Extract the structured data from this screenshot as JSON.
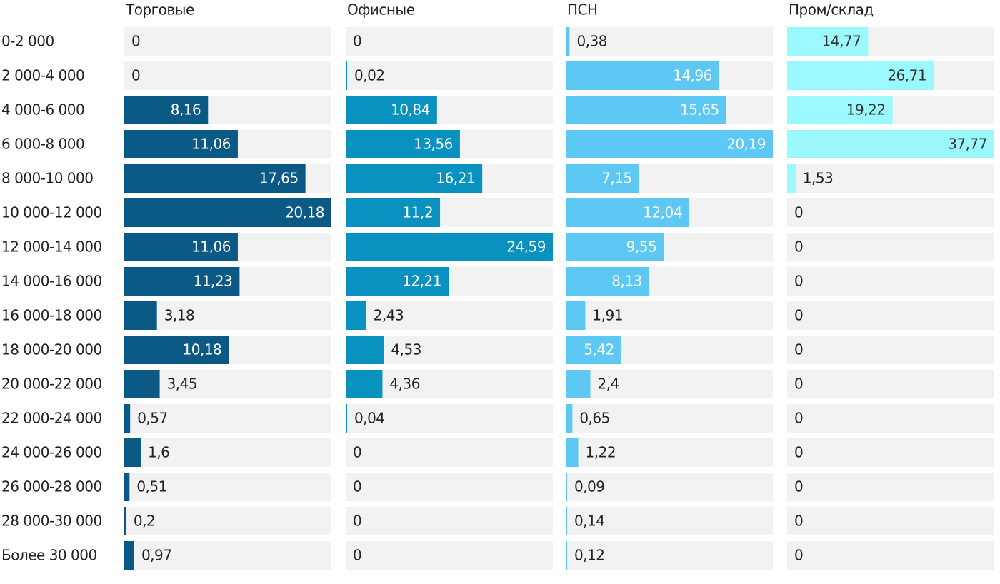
{
  "chart_data": {
    "type": "bar",
    "orientation": "horizontal",
    "categories": [
      "0-2 000",
      "2 000-4 000",
      "4 000-6 000",
      "6 000-8 000",
      "8 000-10 000",
      "10 000-12 000",
      "12 000-14 000",
      "14 000-16 000",
      "16 000-18 000",
      "18 000-20 000",
      "20 000-22 000",
      "22 000-24 000",
      "24 000-26 000",
      "26 000-28 000",
      "28 000-30 000",
      "Более 30 000"
    ],
    "series": [
      {
        "name": "Торговые",
        "color": "#0b5a86",
        "xlim": [
          0,
          20.18
        ],
        "values": [
          0,
          0,
          8.16,
          11.06,
          17.65,
          20.18,
          11.06,
          11.23,
          3.18,
          10.18,
          3.45,
          0.57,
          1.6,
          0.51,
          0.2,
          0.97
        ],
        "value_labels": [
          "0",
          "0",
          "8,16",
          "11,06",
          "17,65",
          "20,18",
          "11,06",
          "11,23",
          "3,18",
          "10,18",
          "3,45",
          "0,57",
          "1,6",
          "0,51",
          "0,2",
          "0,97"
        ]
      },
      {
        "name": "Офисные",
        "color": "#0991bf",
        "xlim": [
          0,
          24.59
        ],
        "values": [
          0,
          0.02,
          10.84,
          13.56,
          16.21,
          11.2,
          24.59,
          12.21,
          2.43,
          4.53,
          4.36,
          0.04,
          0,
          0,
          0,
          0
        ],
        "value_labels": [
          "0",
          "0,02",
          "10,84",
          "13,56",
          "16,21",
          "11,2",
          "24,59",
          "12,21",
          "2,43",
          "4,53",
          "4,36",
          "0,04",
          "0",
          "0",
          "0",
          "0"
        ]
      },
      {
        "name": "ПСН",
        "color": "#5ec8f4",
        "xlim": [
          0,
          20.19
        ],
        "values": [
          0.38,
          14.96,
          15.65,
          20.19,
          7.15,
          12.04,
          9.55,
          8.13,
          1.91,
          5.42,
          2.4,
          0.65,
          1.22,
          0.09,
          0.14,
          0.12
        ],
        "value_labels": [
          "0,38",
          "14,96",
          "15,65",
          "20,19",
          "7,15",
          "12,04",
          "9,55",
          "8,13",
          "1,91",
          "5,42",
          "2,4",
          "0,65",
          "1,22",
          "0,09",
          "0,14",
          "0,12"
        ]
      },
      {
        "name": "Пром/склад",
        "color": "#9bf8fd",
        "xlim": [
          0,
          37.77
        ],
        "values": [
          14.77,
          26.71,
          19.22,
          37.77,
          1.53,
          0,
          0,
          0,
          0,
          0,
          0,
          0,
          0,
          0,
          0,
          0
        ],
        "value_labels": [
          "14,77",
          "26,71",
          "19,22",
          "37,77",
          "1,53",
          "0",
          "0",
          "0",
          "0",
          "0",
          "0",
          "0",
          "0",
          "0",
          "0",
          "0"
        ]
      }
    ]
  }
}
